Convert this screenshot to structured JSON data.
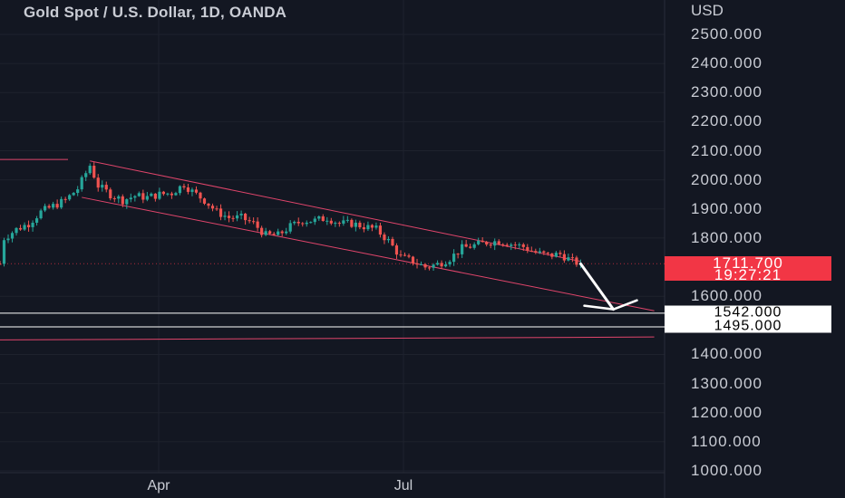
{
  "header": {
    "title": "Gold Spot / U.S. Dollar, 1D, OANDA",
    "currency": "USD"
  },
  "price_badge": {
    "price": "1711.700",
    "countdown": "19:27:21"
  },
  "levels": [
    {
      "price": 1542,
      "label": "1542.000"
    },
    {
      "price": 1495,
      "label": "1495.000"
    }
  ],
  "colors": {
    "background": "#131722",
    "up": "#26a69a",
    "down": "#ef5350",
    "trendline": "#e0456b",
    "level_line": "#ffffff",
    "badge": "#f23645"
  },
  "chart_data": {
    "type": "candlestick",
    "title": "Gold Spot / U.S. Dollar, 1D, OANDA",
    "y_axis": {
      "unit": "USD",
      "ylim": [
        1000,
        2500
      ],
      "ticks": [
        {
          "value": 2500,
          "label": "2500.000"
        },
        {
          "value": 2400,
          "label": "2400.000"
        },
        {
          "value": 2300,
          "label": "2300.000"
        },
        {
          "value": 2200,
          "label": "2200.000"
        },
        {
          "value": 2100,
          "label": "2100.000"
        },
        {
          "value": 2000,
          "label": "2000.000"
        },
        {
          "value": 1900,
          "label": "1900.000"
        },
        {
          "value": 1800,
          "label": "1800.000"
        },
        {
          "value": 1600,
          "label": "1600.000"
        },
        {
          "value": 1400,
          "label": "1400.000"
        },
        {
          "value": 1300,
          "label": "1300.000"
        },
        {
          "value": 1200,
          "label": "1200.000"
        },
        {
          "value": 1100,
          "label": "1100.000"
        },
        {
          "value": 1000,
          "label": "1000.000"
        }
      ]
    },
    "x_axis": {
      "labels": [
        "Apr",
        "Jul"
      ]
    },
    "last_price": 1711.7,
    "price_path": [
      [
        1,
        1800
      ],
      [
        4,
        1830
      ],
      [
        7,
        1850
      ],
      [
        10,
        1890
      ],
      [
        13,
        1910
      ],
      [
        16,
        1930
      ],
      [
        19,
        1970
      ],
      [
        22,
        2050
      ],
      [
        24,
        1980
      ],
      [
        27,
        1950
      ],
      [
        30,
        1930
      ],
      [
        33,
        1945
      ],
      [
        36,
        1940
      ],
      [
        39,
        1950
      ],
      [
        42,
        1955
      ],
      [
        45,
        1985
      ],
      [
        47,
        1960
      ],
      [
        50,
        1930
      ],
      [
        53,
        1890
      ],
      [
        56,
        1870
      ],
      [
        59,
        1870
      ],
      [
        62,
        1850
      ],
      [
        65,
        1810
      ],
      [
        68,
        1810
      ],
      [
        71,
        1840
      ],
      [
        74,
        1860
      ],
      [
        77,
        1860
      ],
      [
        80,
        1870
      ],
      [
        83,
        1850
      ],
      [
        86,
        1850
      ],
      [
        89,
        1840
      ],
      [
        92,
        1830
      ],
      [
        95,
        1790
      ],
      [
        98,
        1735
      ],
      [
        101,
        1720
      ],
      [
        104,
        1700
      ],
      [
        107,
        1710
      ],
      [
        110,
        1730
      ],
      [
        113,
        1765
      ],
      [
        116,
        1775
      ],
      [
        119,
        1785
      ],
      [
        122,
        1790
      ],
      [
        125,
        1780
      ],
      [
        128,
        1770
      ],
      [
        131,
        1750
      ],
      [
        134,
        1740
      ],
      [
        137,
        1745
      ],
      [
        140,
        1720
      ],
      [
        142,
        1711.7
      ]
    ],
    "annotations": {
      "horizontal_levels": [
        1542,
        1495
      ],
      "old_high_line": 2070,
      "channel_upper": [
        [
          22,
          2065
        ],
        [
          142,
          1720
        ]
      ],
      "channel_middle": [
        [
          20,
          1940
        ],
        [
          160,
          1550
        ]
      ],
      "channel_lower": [
        [
          0,
          1450
        ],
        [
          160,
          1460
        ]
      ],
      "forecast_arrow": [
        [
          142,
          1711.7
        ],
        [
          150,
          1555
        ]
      ]
    }
  }
}
